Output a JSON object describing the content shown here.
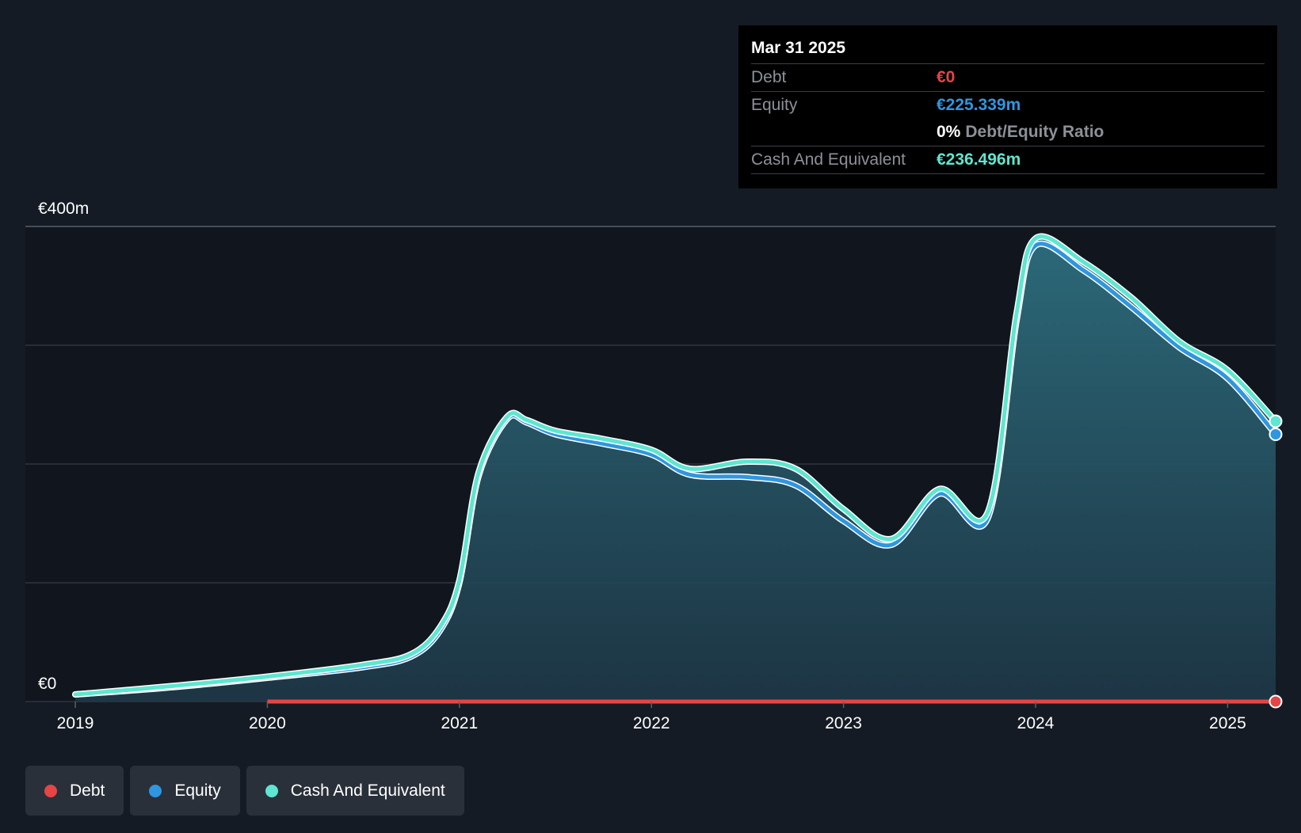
{
  "tooltip": {
    "date": "Mar 31 2025",
    "rows": [
      {
        "label": "Debt",
        "value": "€0",
        "color": "#e64545"
      },
      {
        "label": "Equity",
        "value": "€225.339m",
        "color": "#2f96e0"
      }
    ],
    "ratio": {
      "value": "0%",
      "label": "Debt/Equity Ratio"
    },
    "cash": {
      "label": "Cash And Equivalent",
      "value": "€236.496m",
      "color": "#5ee6d0"
    }
  },
  "legend": [
    {
      "label": "Debt",
      "color": "#e64545"
    },
    {
      "label": "Equity",
      "color": "#2f96e0"
    },
    {
      "label": "Cash And Equivalent",
      "color": "#5ee6d0"
    }
  ],
  "chart_data": {
    "type": "area",
    "title": "",
    "xlabel": "",
    "ylabel": "",
    "ylim": [
      0,
      400
    ],
    "xlim": [
      2018.74,
      2025.25
    ],
    "grid": true,
    "y_tick_labels": [
      {
        "value": 400,
        "label": "€400m"
      },
      {
        "value": 0,
        "label": "€0"
      }
    ],
    "y_gridlines": [
      0,
      100,
      200,
      300,
      400
    ],
    "x_ticks": [
      "2019",
      "2020",
      "2021",
      "2022",
      "2023",
      "2024",
      "2025"
    ],
    "series": [
      {
        "name": "Debt",
        "color": "#e64545",
        "x": [
          2020.0,
          2025.25
        ],
        "values": [
          0,
          0
        ]
      },
      {
        "name": "Equity",
        "color": "#2f96e0",
        "x": [
          2019.0,
          2019.5,
          2020.0,
          2020.5,
          2020.75,
          2020.9,
          2021.0,
          2021.1,
          2021.25,
          2021.35,
          2021.5,
          2021.75,
          2022.0,
          2022.2,
          2022.5,
          2022.75,
          2023.0,
          2023.25,
          2023.5,
          2023.75,
          2023.9,
          2024.0,
          2024.25,
          2024.5,
          2024.75,
          2025.0,
          2025.25
        ],
        "values": [
          6,
          12,
          20,
          29,
          38,
          60,
          100,
          190,
          238,
          235,
          225,
          217,
          208,
          191,
          189,
          182,
          152,
          132,
          175,
          154,
          320,
          384,
          363,
          332,
          298,
          272,
          225
        ]
      },
      {
        "name": "Cash And Equivalent",
        "color": "#5ee6d0",
        "x": [
          2019.0,
          2019.5,
          2020.0,
          2020.5,
          2020.75,
          2020.9,
          2021.0,
          2021.1,
          2021.25,
          2021.35,
          2021.5,
          2021.75,
          2022.0,
          2022.2,
          2022.5,
          2022.75,
          2023.0,
          2023.25,
          2023.5,
          2023.75,
          2023.9,
          2024.0,
          2024.25,
          2024.5,
          2024.75,
          2025.0,
          2025.25
        ],
        "values": [
          6,
          13,
          21,
          31,
          40,
          63,
          102,
          193,
          240,
          237,
          228,
          221,
          212,
          196,
          202,
          196,
          162,
          137,
          179,
          159,
          326,
          390,
          370,
          340,
          303,
          279,
          236
        ]
      }
    ]
  }
}
